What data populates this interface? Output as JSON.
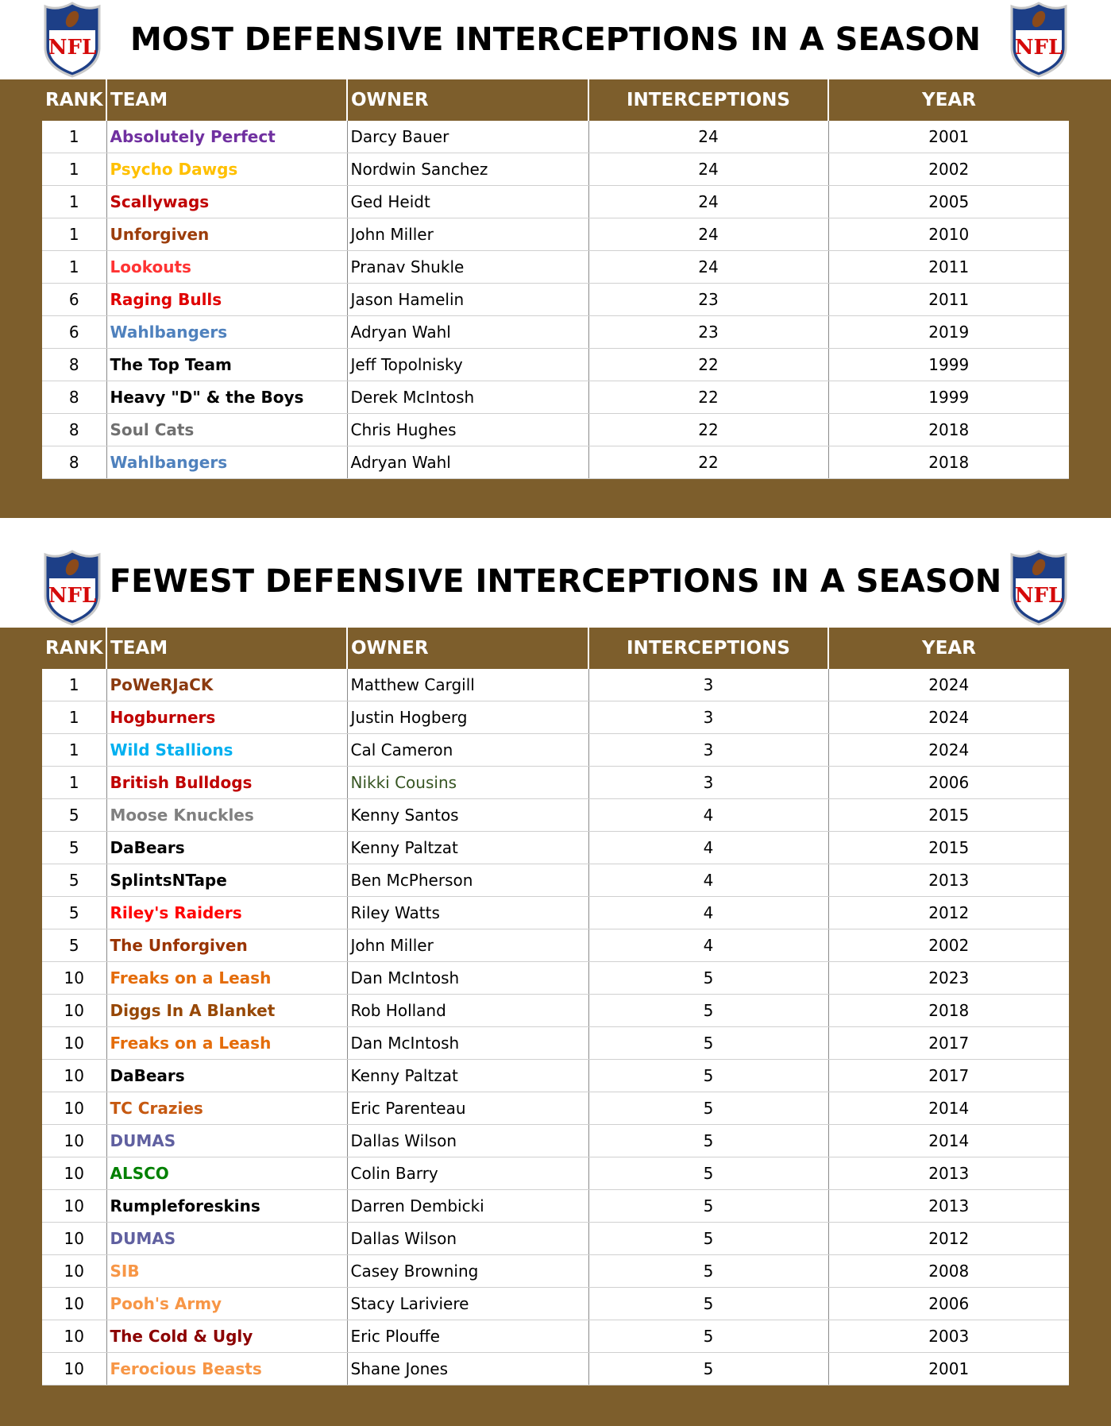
{
  "logo_text": "NFL",
  "tables": [
    {
      "title": "MOST DEFENSIVE INTERCEPTIONS IN A SEASON",
      "columns": [
        "RANK",
        "TEAM",
        "OWNER",
        "INTERCEPTIONS",
        "YEAR"
      ],
      "rows": [
        {
          "rank": 1,
          "team": "Absolutely Perfect",
          "team_color": "#7030a0",
          "owner": "Darcy Bauer",
          "interceptions": 24,
          "year": 2001
        },
        {
          "rank": 1,
          "team": "Psycho Dawgs",
          "team_color": "#ffc000",
          "owner": "Nordwin Sanchez",
          "interceptions": 24,
          "year": 2002
        },
        {
          "rank": 1,
          "team": "Scallywags",
          "team_color": "#c00000",
          "owner": "Ged Heidt",
          "interceptions": 24,
          "year": 2005
        },
        {
          "rank": 1,
          "team": "Unforgiven",
          "team_color": "#9c3d0b",
          "owner": "John Miller",
          "interceptions": 24,
          "year": 2010
        },
        {
          "rank": 1,
          "team": "Lookouts",
          "team_color": "#ff3333",
          "owner": "Pranav Shukle",
          "interceptions": 24,
          "year": 2011
        },
        {
          "rank": 6,
          "team": "Raging Bulls",
          "team_color": "#e00000",
          "owner": "Jason Hamelin",
          "interceptions": 23,
          "year": 2011
        },
        {
          "rank": 6,
          "team": "Wahlbangers",
          "team_color": "#4f81bd",
          "owner": "Adryan Wahl",
          "interceptions": 23,
          "year": 2019
        },
        {
          "rank": 8,
          "team": "The Top Team",
          "team_color": "#000000",
          "owner": "Jeff Topolnisky",
          "interceptions": 22,
          "year": 1999
        },
        {
          "rank": 8,
          "team": "Heavy \"D\" & the Boys",
          "team_color": "#000000",
          "owner": "Derek McIntosh",
          "interceptions": 22,
          "year": 1999
        },
        {
          "rank": 8,
          "team": "Soul Cats",
          "team_color": "#707070",
          "owner": "Chris Hughes",
          "interceptions": 22,
          "year": 2018
        },
        {
          "rank": 8,
          "team": "Wahlbangers",
          "team_color": "#4f81bd",
          "owner": "Adryan Wahl",
          "interceptions": 22,
          "year": 2018
        }
      ]
    },
    {
      "title": "FEWEST DEFENSIVE INTERCEPTIONS IN A SEASON",
      "columns": [
        "RANK",
        "TEAM",
        "OWNER",
        "INTERCEPTIONS",
        "YEAR"
      ],
      "rows": [
        {
          "rank": 1,
          "team": "PoWeRJaCK",
          "team_color": "#8b3a0f",
          "owner": "Matthew Cargill",
          "interceptions": 3,
          "year": 2024
        },
        {
          "rank": 1,
          "team": "Hogburners",
          "team_color": "#c00000",
          "owner": "Justin Hogberg",
          "interceptions": 3,
          "year": 2024
        },
        {
          "rank": 1,
          "team": "Wild Stallions",
          "team_color": "#00b0f0",
          "owner": "Cal Cameron",
          "interceptions": 3,
          "year": 2024
        },
        {
          "rank": 1,
          "team": "British Bulldogs",
          "team_color": "#c00000",
          "owner": "Nikki Cousins",
          "owner_color": "#375623",
          "interceptions": 3,
          "year": 2006
        },
        {
          "rank": 5,
          "team": "Moose Knuckles",
          "team_color": "#808080",
          "owner": "Kenny Santos",
          "interceptions": 4,
          "year": 2015
        },
        {
          "rank": 5,
          "team": "DaBears",
          "team_color": "#000000",
          "owner": "Kenny Paltzat",
          "interceptions": 4,
          "year": 2015
        },
        {
          "rank": 5,
          "team": "SplintsNTape",
          "team_color": "#000000",
          "owner": "Ben McPherson",
          "interceptions": 4,
          "year": 2013
        },
        {
          "rank": 5,
          "team": "Riley's Raiders",
          "team_color": "#ff0000",
          "owner": "Riley Watts",
          "interceptions": 4,
          "year": 2012
        },
        {
          "rank": 5,
          "team": "The Unforgiven",
          "team_color": "#993300",
          "owner": "John Miller",
          "interceptions": 4,
          "year": 2002
        },
        {
          "rank": 10,
          "team": "Freaks on a Leash",
          "team_color": "#e46c0a",
          "owner": "Dan McIntosh",
          "interceptions": 5,
          "year": 2023
        },
        {
          "rank": 10,
          "team": "Diggs In A Blanket",
          "team_color": "#974806",
          "owner": "Rob Holland",
          "interceptions": 5,
          "year": 2018
        },
        {
          "rank": 10,
          "team": "Freaks on a Leash",
          "team_color": "#e46c0a",
          "owner": "Dan McIntosh",
          "interceptions": 5,
          "year": 2017
        },
        {
          "rank": 10,
          "team": "DaBears",
          "team_color": "#000000",
          "owner": "Kenny Paltzat",
          "interceptions": 5,
          "year": 2017
        },
        {
          "rank": 10,
          "team": "TC Crazies",
          "team_color": "#c65911",
          "owner": "Eric Parenteau",
          "interceptions": 5,
          "year": 2014
        },
        {
          "rank": 10,
          "team": "DUMAS",
          "team_color": "#6060a0",
          "owner": "Dallas Wilson",
          "interceptions": 5,
          "year": 2014
        },
        {
          "rank": 10,
          "team": "ALSCO",
          "team_color": "#008000",
          "owner": "Colin Barry",
          "interceptions": 5,
          "year": 2013
        },
        {
          "rank": 10,
          "team": "Rumpleforeskins",
          "team_color": "#000000",
          "owner": "Darren Dembicki",
          "interceptions": 5,
          "year": 2013
        },
        {
          "rank": 10,
          "team": "DUMAS",
          "team_color": "#6060a0",
          "owner": "Dallas Wilson",
          "interceptions": 5,
          "year": 2012
        },
        {
          "rank": 10,
          "team": "SIB",
          "team_color": "#f79646",
          "owner": "Casey Browning",
          "interceptions": 5,
          "year": 2008
        },
        {
          "rank": 10,
          "team": "Pooh's Army",
          "team_color": "#f79646",
          "owner": "Stacy Lariviere",
          "interceptions": 5,
          "year": 2006
        },
        {
          "rank": 10,
          "team": "The Cold & Ugly",
          "team_color": "#8b0000",
          "owner": "Eric Plouffe",
          "interceptions": 5,
          "year": 2003
        },
        {
          "rank": 10,
          "team": "Ferocious Beasts",
          "team_color": "#f79646",
          "owner": "Shane Jones",
          "interceptions": 5,
          "year": 2001
        }
      ]
    }
  ]
}
